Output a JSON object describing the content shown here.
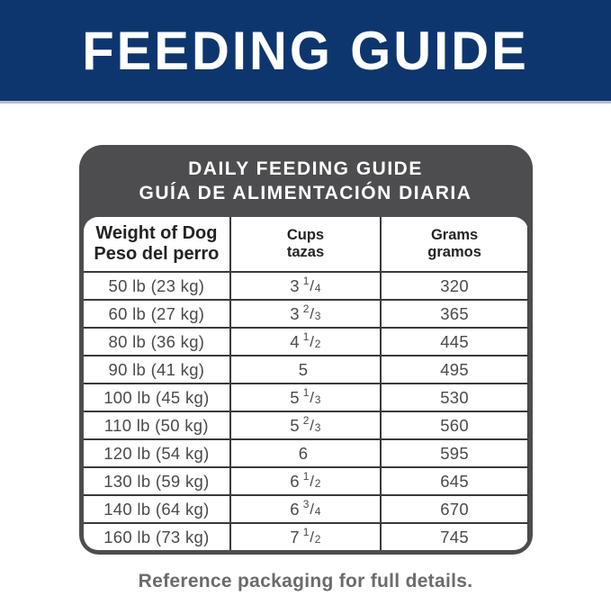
{
  "banner": {
    "title": "FEEDING GUIDE"
  },
  "guide": {
    "title_line1": "DAILY FEEDING GUIDE",
    "title_line2": "GUÍA DE ALIMENTACIÓN DIARIA",
    "columns": {
      "weight_en": "Weight of Dog",
      "weight_es": "Peso del perro",
      "cups_en": "Cups",
      "cups_es": "tazas",
      "grams_en": "Grams",
      "grams_es": "gramos"
    },
    "rows": [
      {
        "weight": "50 lb (23 kg)",
        "cups_whole": "3",
        "cups_num": "1",
        "cups_slash": "/",
        "cups_den": "4",
        "grams": "320"
      },
      {
        "weight": "60 lb (27 kg)",
        "cups_whole": "3",
        "cups_num": "2",
        "cups_slash": "/",
        "cups_den": "3",
        "grams": "365"
      },
      {
        "weight": "80 lb (36 kg)",
        "cups_whole": "4",
        "cups_num": "1",
        "cups_slash": "/",
        "cups_den": "2",
        "grams": "445"
      },
      {
        "weight": "90 lb (41 kg)",
        "cups_whole": "5",
        "cups_num": "",
        "cups_slash": "",
        "cups_den": "",
        "grams": "495"
      },
      {
        "weight": "100 lb (45 kg)",
        "cups_whole": "5",
        "cups_num": "1",
        "cups_slash": "/",
        "cups_den": "3",
        "grams": "530"
      },
      {
        "weight": "110 lb (50 kg)",
        "cups_whole": "5",
        "cups_num": "2",
        "cups_slash": "/",
        "cups_den": "3",
        "grams": "560"
      },
      {
        "weight": "120 lb (54 kg)",
        "cups_whole": "6",
        "cups_num": "",
        "cups_slash": "",
        "cups_den": "",
        "grams": "595"
      },
      {
        "weight": "130 lb (59 kg)",
        "cups_whole": "6",
        "cups_num": "1",
        "cups_slash": "/",
        "cups_den": "2",
        "grams": "645"
      },
      {
        "weight": "140 lb (64 kg)",
        "cups_whole": "6",
        "cups_num": "3",
        "cups_slash": "/",
        "cups_den": "4",
        "grams": "670"
      },
      {
        "weight": "160 lb (73 kg)",
        "cups_whole": "7",
        "cups_num": "1",
        "cups_slash": "/",
        "cups_den": "2",
        "grams": "745"
      }
    ]
  },
  "footer": {
    "note": "Reference packaging for full details."
  },
  "colors": {
    "banner_blue": "#0e366e",
    "banner_underline": "#b3bcd6",
    "header_gray": "#4d4d4f",
    "grid_line": "#3a3a3c",
    "data_text": "#4a4a4d",
    "footer_text": "#6b6b6e"
  }
}
